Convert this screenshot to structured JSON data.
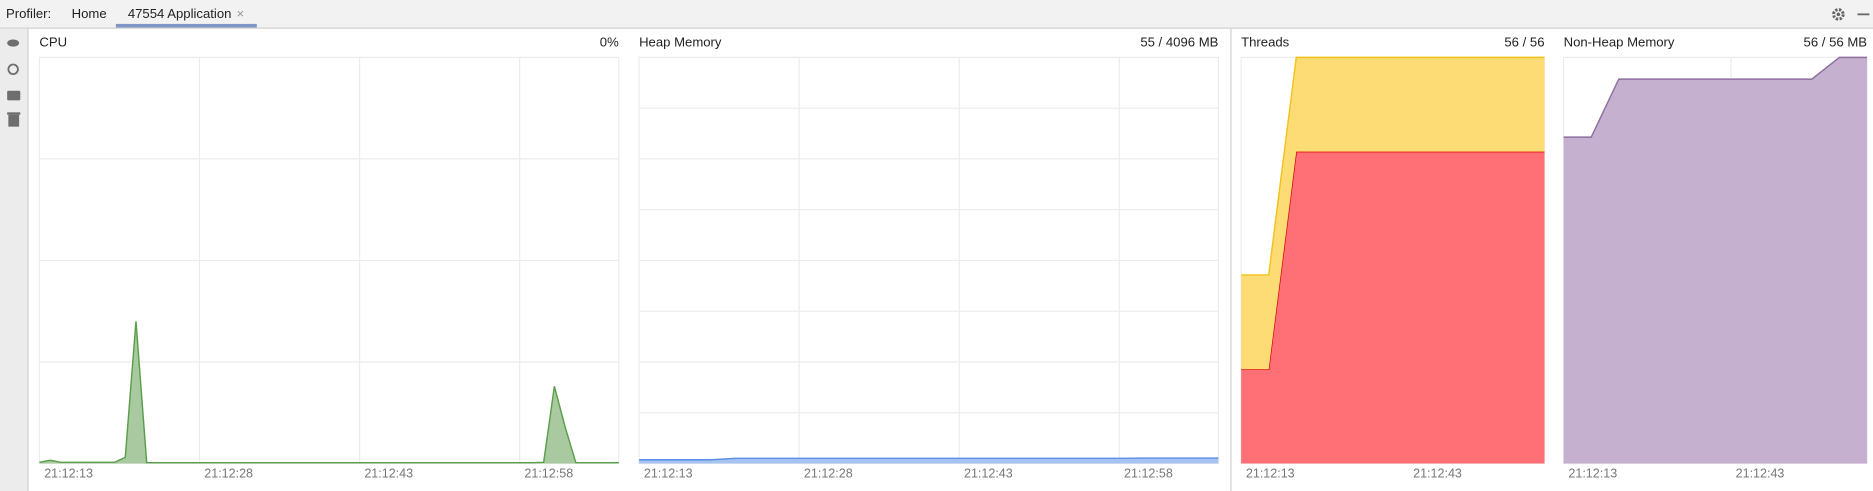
{
  "toolbar": {
    "label": "Profiler:",
    "tabs": [
      "Home",
      "47554 Application"
    ]
  },
  "panels": [
    {
      "type": "area",
      "title": "CPU",
      "value_label": "0%",
      "ylim": [
        0,
        100
      ],
      "xticks": [
        "21:12:13",
        "21:12:28",
        "21:12:43",
        "21:12:58"
      ],
      "series": [
        {
          "color": "#5a9e4a",
          "fill": "#a9c9a0",
          "values": [
            0.3,
            0.8,
            0.3,
            0.3,
            0.3,
            0.3,
            0.3,
            0.3,
            1.5,
            35,
            0.2,
            0.2,
            0.2,
            0.2,
            0.2,
            0.2,
            0.2,
            0.2,
            0.2,
            0.2,
            0.2,
            0.2,
            0.2,
            0.2,
            0.2,
            0.2,
            0.2,
            0.2,
            0.2,
            0.2,
            0.2,
            0.2,
            0.2,
            0.2,
            0.2,
            0.2,
            0.2,
            0.2,
            0.2,
            0.2,
            0.2,
            0.2,
            0.2,
            0.2,
            0.2,
            0.2,
            0.2,
            0.3,
            19,
            9,
            0.2,
            0.2,
            0.2,
            0.2,
            0.2
          ]
        }
      ]
    },
    {
      "type": "area",
      "title": "Heap Memory",
      "value_label": "55 / 4096 MB",
      "ylim": [
        0,
        4096
      ],
      "xticks": [
        "21:12:13",
        "21:12:28",
        "21:12:43",
        "21:12:58"
      ],
      "series": [
        {
          "color": "#5b8ee6",
          "fill": "#a6c3f1",
          "values": [
            38,
            38,
            38,
            38,
            52,
            52,
            52,
            52,
            52,
            52,
            52,
            52,
            52,
            52,
            52,
            52,
            52,
            52,
            52,
            52,
            52,
            55,
            55,
            55,
            55
          ]
        }
      ]
    },
    {
      "type": "area",
      "title": "Threads",
      "value_label": "56 / 56",
      "ylim": [
        0,
        56
      ],
      "stacked": true,
      "xticks": [
        "21:12:13",
        "21:12:43"
      ],
      "series": [
        {
          "color": "#d40000",
          "fill": "#ff7076",
          "values": [
            13,
            13,
            43,
            43,
            43,
            43,
            43,
            43,
            43,
            43,
            43,
            43
          ]
        },
        {
          "color": "#f2c21b",
          "fill": "#fddc76",
          "values": [
            13,
            13,
            13,
            13,
            13,
            13,
            13,
            13,
            13,
            13,
            13,
            13
          ]
        }
      ]
    },
    {
      "type": "area",
      "title": "Non-Heap Memory",
      "value_label": "56 / 56 MB",
      "ylim": [
        0,
        56
      ],
      "xticks": [
        "21:12:13",
        "21:12:43"
      ],
      "series": [
        {
          "color": "#8e6f9e",
          "fill": "#c5b0d0",
          "values": [
            45,
            45,
            53,
            53,
            53,
            53,
            53,
            53,
            53,
            53,
            56,
            56
          ]
        }
      ]
    }
  ]
}
